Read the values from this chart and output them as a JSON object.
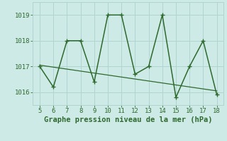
{
  "x": [
    5,
    6,
    7,
    8,
    9,
    10,
    11,
    12,
    13,
    14,
    15,
    16,
    17,
    18
  ],
  "y": [
    1017.0,
    1016.2,
    1018.0,
    1018.0,
    1016.4,
    1019.0,
    1019.0,
    1016.7,
    1017.0,
    1019.0,
    1015.8,
    1017.0,
    1018.0,
    1015.9
  ],
  "trend_x": [
    5,
    18
  ],
  "trend_y": [
    1017.05,
    1016.05
  ],
  "line_color": "#2d6a2d",
  "bg_color": "#ceeae6",
  "grid_color": "#b0d4d0",
  "xlabel": "Graphe pression niveau de la mer (hPa)",
  "ylim": [
    1015.5,
    1019.5
  ],
  "xlim": [
    4.5,
    18.5
  ],
  "yticks": [
    1016,
    1017,
    1018,
    1019
  ],
  "xticks": [
    5,
    6,
    7,
    8,
    9,
    10,
    11,
    12,
    13,
    14,
    15,
    16,
    17,
    18
  ],
  "tick_fontsize": 6.5,
  "xlabel_fontsize": 7.5,
  "marker": "+"
}
